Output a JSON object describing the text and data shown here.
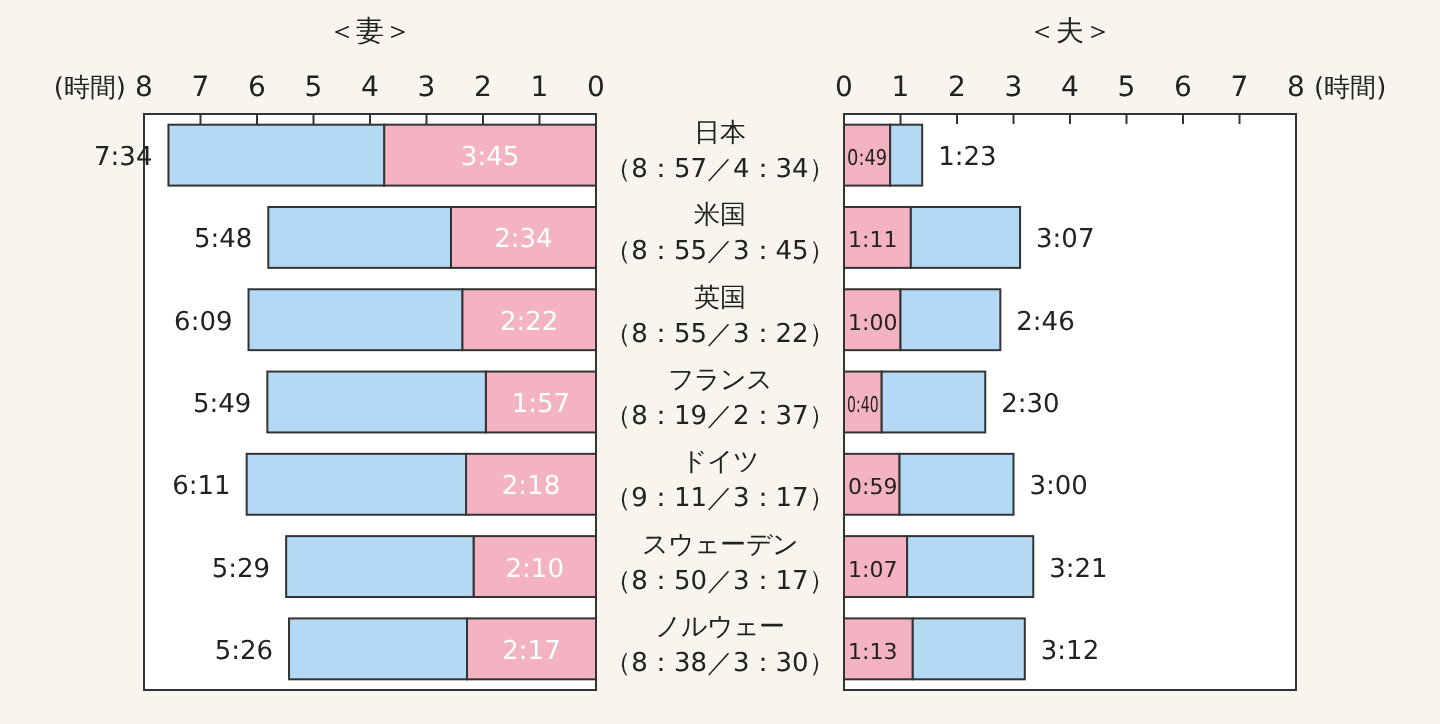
{
  "chart_data": [
    {
      "type": "bar",
      "orientation": "horizontal",
      "stacked": true,
      "title": "＜妻＞",
      "xlabel": "(時間)",
      "xlim": [
        8,
        0
      ],
      "xticks": [
        8,
        7,
        6,
        5,
        4,
        3,
        2,
        1,
        0
      ],
      "grid": false,
      "categories": [
        "日本（8：57／4：34）",
        "米国（8：55／3：45）",
        "英国（8：55／3：22）",
        "フランス（8：19／2：37）",
        "ドイツ（9：11／3：17）",
        "スウェーデン（8：50／3：17）",
        "ノルウェー（8：38／3：30）"
      ],
      "series": [
        {
          "color": "#f4b3c2",
          "values": [
            3.75,
            2.567,
            2.367,
            1.95,
            2.3,
            2.167,
            2.283
          ],
          "value_labels": [
            "3:45",
            "2:34",
            "2:22",
            "1:57",
            "2:18",
            "2:10",
            "2:17"
          ]
        },
        {
          "color": "#b3d9f5",
          "values": [
            3.817,
            3.233,
            3.783,
            3.867,
            3.883,
            3.317,
            3.15
          ]
        }
      ],
      "totals": [
        "7:34",
        "5:48",
        "6:09",
        "5:49",
        "6:11",
        "5:29",
        "5:26"
      ]
    },
    {
      "type": "bar",
      "orientation": "horizontal",
      "stacked": true,
      "title": "＜夫＞",
      "xlabel": "(時間)",
      "xlim": [
        0,
        8
      ],
      "xticks": [
        0,
        1,
        2,
        3,
        4,
        5,
        6,
        7,
        8
      ],
      "grid": false,
      "tick_labels": "x",
      "categories": [
        null,
        null,
        null,
        null,
        null,
        null,
        null
      ],
      "series": [
        {
          "color": "#f4b3c2",
          "values": [
            0.817,
            1.183,
            1.0,
            0.667,
            0.983,
            1.117,
            1.217
          ],
          "value_labels": [
            "0:49",
            "1:11",
            "1:00",
            "0:40",
            "0:59",
            "1:07",
            "1:13"
          ]
        },
        {
          "color": "#b3d9f5",
          "values": [
            0.567,
            1.933,
            1.767,
            1.833,
            2.017,
            2.233,
            1.983
          ]
        }
      ],
      "totals": [
        "1:23",
        "3:07",
        "2:46",
        "2:30",
        "3:00",
        "3:21",
        "3:12"
      ]
    }
  ]
}
